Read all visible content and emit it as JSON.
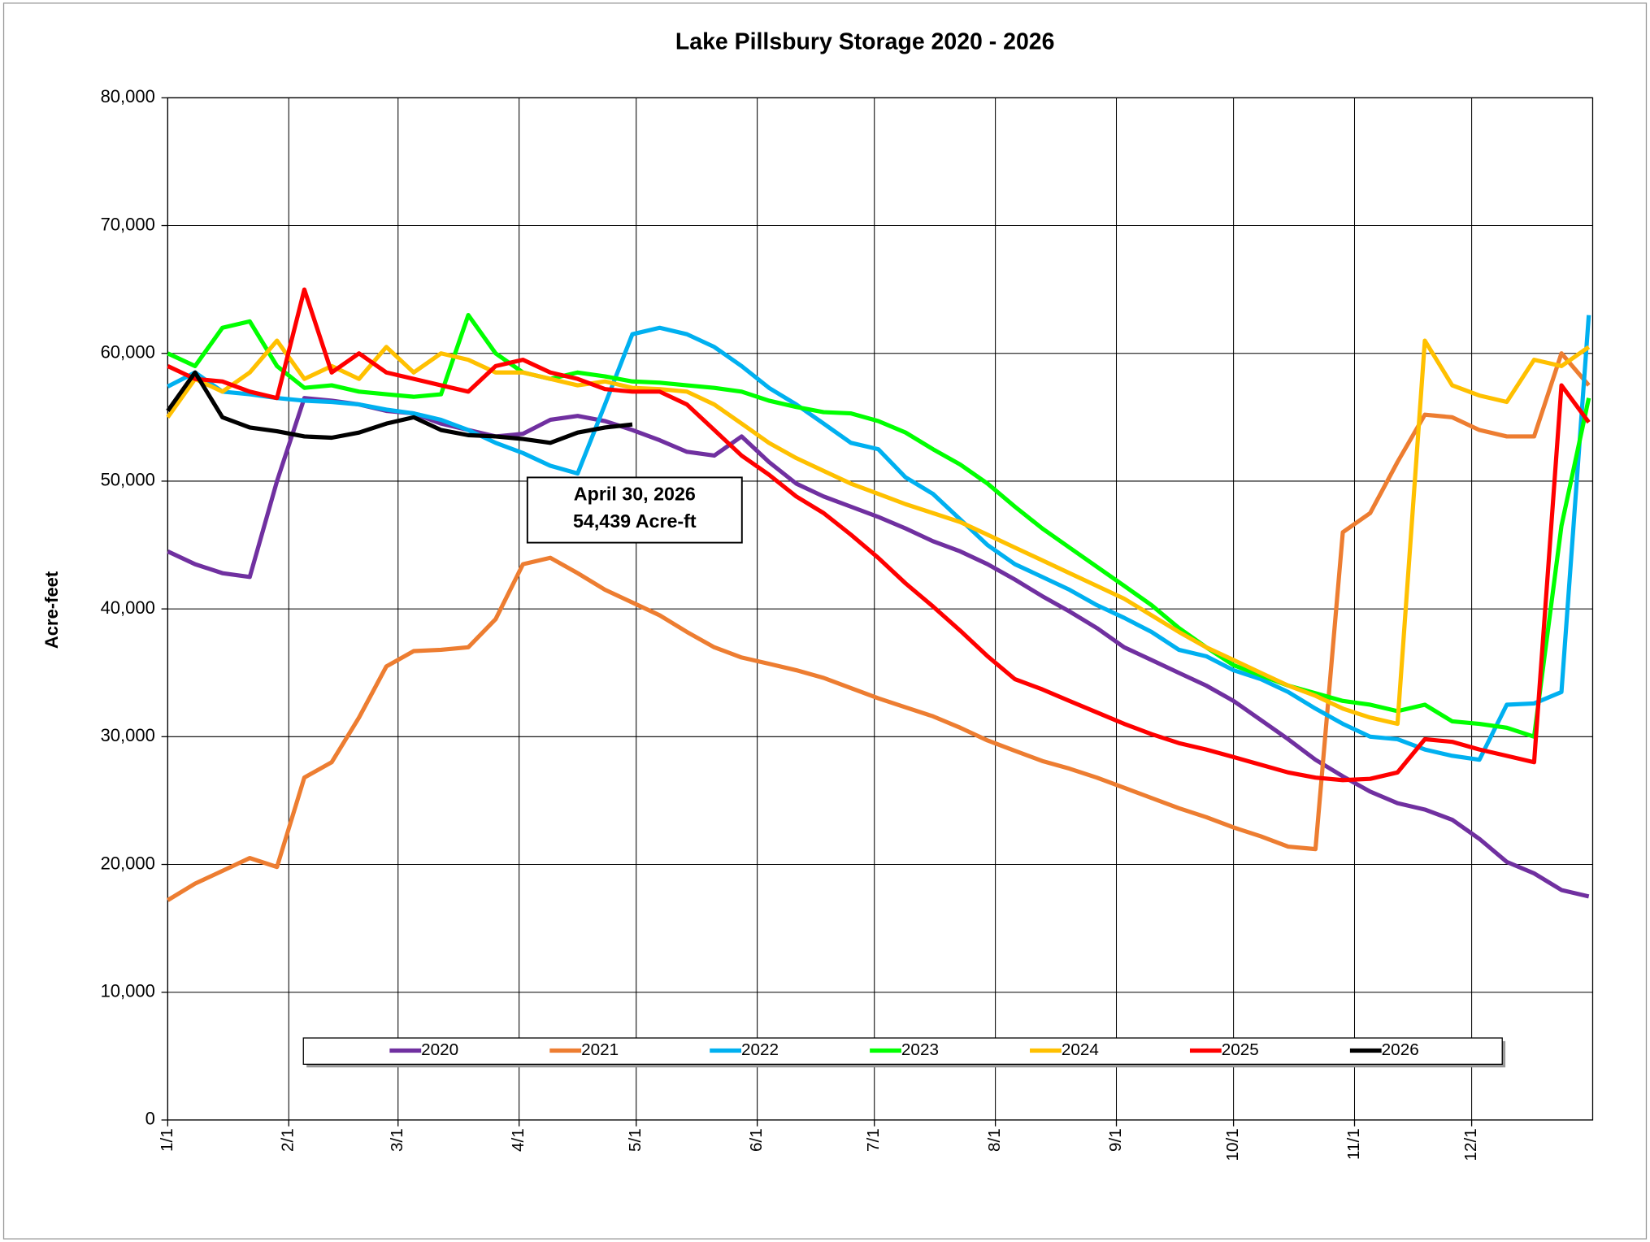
{
  "chart_data": {
    "type": "line",
    "title": "Lake Pillsbury Storage  2020 - 2026",
    "y_label": "Acre-feet",
    "annotation": [
      "April 30, 2026",
      "54,439 Acre-ft"
    ],
    "xlim": [
      1,
      366
    ],
    "xticks": [
      {
        "value": 1,
        "label": "1/1"
      },
      {
        "value": 32,
        "label": "2/1"
      },
      {
        "value": 60,
        "label": "3/1"
      },
      {
        "value": 91,
        "label": "4/1"
      },
      {
        "value": 121,
        "label": "5/1"
      },
      {
        "value": 152,
        "label": "6/1"
      },
      {
        "value": 182,
        "label": "7/1"
      },
      {
        "value": 213,
        "label": "8/1"
      },
      {
        "value": 244,
        "label": "9/1"
      },
      {
        "value": 274,
        "label": "10/1"
      },
      {
        "value": 305,
        "label": "11/1"
      },
      {
        "value": 335,
        "label": "12/1"
      }
    ],
    "ylim": [
      0,
      80000
    ],
    "yticks": [
      0,
      {
        "value": 10000,
        "label": "10,000"
      },
      {
        "value": 20000,
        "label": "20,000"
      },
      {
        "value": 30000,
        "label": "30,000"
      },
      {
        "value": 40000,
        "label": "40,000"
      },
      {
        "value": 50000,
        "label": "50,000"
      },
      {
        "value": 60000,
        "label": "60,000"
      },
      {
        "value": 70000,
        "label": "70,000"
      },
      {
        "value": 80000,
        "label": "80,000"
      }
    ],
    "grid": true,
    "legend": "bottom",
    "x": [
      1,
      8,
      15,
      22,
      29,
      36,
      43,
      50,
      57,
      64,
      71,
      78,
      85,
      92,
      99,
      106,
      113,
      120,
      127,
      134,
      141,
      148,
      155,
      162,
      169,
      176,
      183,
      190,
      197,
      204,
      211,
      218,
      225,
      232,
      239,
      246,
      253,
      260,
      267,
      274,
      281,
      288,
      295,
      302,
      309,
      316,
      323,
      330,
      337,
      344,
      351,
      358,
      365
    ],
    "series": [
      {
        "name": "2020",
        "color": "#7030a0",
        "values": [
          44500,
          43500,
          42800,
          42500,
          50000,
          56500,
          56300,
          56000,
          55500,
          55300,
          54500,
          54000,
          53500,
          53700,
          54800,
          55100,
          54700,
          54000,
          53200,
          52300,
          52000,
          53500,
          51500,
          49800,
          48800,
          48000,
          47200,
          46300,
          45300,
          44500,
          43500,
          42300,
          41000,
          39800,
          38500,
          37000,
          36000,
          35000,
          34000,
          32800,
          31300,
          29800,
          28200,
          26900,
          25700,
          24800,
          24300,
          23500,
          22000,
          20200,
          19300,
          18000,
          17500
        ]
      },
      {
        "name": "2021",
        "color": "#ed7d31",
        "values": [
          17200,
          18500,
          19500,
          20500,
          19800,
          26800,
          28000,
          31500,
          35500,
          36700,
          36800,
          37000,
          39200,
          43500,
          44000,
          42800,
          41500,
          40500,
          39500,
          38200,
          37000,
          36200,
          35700,
          35200,
          34600,
          33800,
          33000,
          32300,
          31600,
          30700,
          29700,
          28900,
          28100,
          27500,
          26800,
          26000,
          25200,
          24400,
          23700,
          22900,
          22200,
          21400,
          21200,
          46000,
          47500,
          51500,
          55200,
          55000,
          54000,
          53500,
          53500,
          60000,
          57500
        ]
      },
      {
        "name": "2022",
        "color": "#00b0f0",
        "values": [
          57400,
          58500,
          57000,
          56800,
          56500,
          56300,
          56200,
          56000,
          55600,
          55300,
          54800,
          54000,
          53000,
          52200,
          51200,
          50600,
          56000,
          61500,
          62000,
          61500,
          60500,
          59000,
          57300,
          56000,
          54500,
          53000,
          52500,
          50300,
          49000,
          47000,
          45000,
          43500,
          42500,
          41500,
          40300,
          39300,
          38200,
          36800,
          36300,
          35200,
          34500,
          33500,
          32200,
          31000,
          30000,
          29800,
          29000,
          28500,
          28200,
          32500,
          32600,
          33500,
          63000
        ]
      },
      {
        "name": "2023",
        "color": "#00ff00",
        "values": [
          60000,
          59000,
          62000,
          62500,
          59000,
          57300,
          57500,
          57000,
          56800,
          56600,
          56800,
          63000,
          60000,
          58500,
          58000,
          58500,
          58200,
          57800,
          57700,
          57500,
          57300,
          57000,
          56300,
          55800,
          55400,
          55300,
          54700,
          53800,
          52500,
          51300,
          49800,
          48000,
          46300,
          44800,
          43300,
          41800,
          40300,
          38500,
          37000,
          35600,
          34800,
          34000,
          33400,
          32800,
          32500,
          32000,
          32500,
          31200,
          31000,
          30700,
          30000,
          46500,
          56500
        ]
      },
      {
        "name": "2024",
        "color": "#ffc000",
        "values": [
          55000,
          58000,
          57000,
          58500,
          61000,
          58000,
          59000,
          58000,
          60500,
          58500,
          60000,
          59500,
          58500,
          58500,
          58000,
          57500,
          57800,
          57300,
          57200,
          57000,
          56000,
          54500,
          53000,
          51800,
          50800,
          49800,
          49000,
          48200,
          47500,
          46800,
          45800,
          44800,
          43800,
          42800,
          41800,
          40800,
          39500,
          38200,
          37000,
          36000,
          35000,
          34000,
          33200,
          32200,
          31500,
          31000,
          61000,
          57500,
          56700,
          56200,
          59500,
          59000,
          60500
        ]
      },
      {
        "name": "2025",
        "color": "#ff0000",
        "values": [
          59000,
          58000,
          57800,
          57000,
          56500,
          65000,
          58500,
          60000,
          58500,
          58000,
          57500,
          57000,
          59000,
          59500,
          58500,
          58000,
          57200,
          57000,
          57000,
          56000,
          54000,
          52000,
          50500,
          48800,
          47500,
          45800,
          44000,
          42000,
          40200,
          38300,
          36300,
          34500,
          33700,
          32800,
          31900,
          31000,
          30200,
          29500,
          29000,
          28400,
          27800,
          27200,
          26800,
          26600,
          26700,
          27200,
          29800,
          29600,
          29000,
          28500,
          28000,
          57500,
          54600
        ]
      },
      {
        "name": "2026",
        "color": "#000000",
        "values": [
          55500,
          58500,
          55000,
          54200,
          53900,
          53500,
          53400,
          53800,
          54500,
          55000,
          54000,
          53600,
          53500,
          53300,
          53000,
          53800,
          54200,
          54439,
          null,
          null,
          null,
          null,
          null,
          null,
          null,
          null,
          null,
          null,
          null,
          null,
          null,
          null,
          null,
          null,
          null,
          null,
          null,
          null,
          null,
          null,
          null,
          null,
          null,
          null,
          null,
          null,
          null,
          null,
          null,
          null,
          null,
          null,
          null
        ]
      }
    ]
  }
}
